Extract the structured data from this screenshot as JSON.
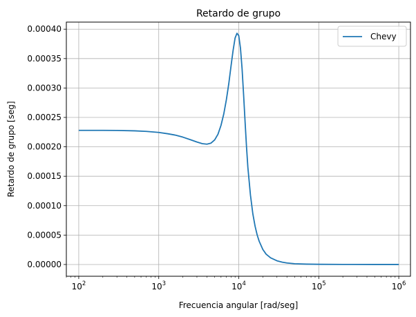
{
  "chart_data": {
    "type": "line",
    "title": "Retardo de grupo",
    "xlabel": "Frecuencia angular [rad/seg]",
    "ylabel": "Retardo de grupo [seg]",
    "x_scale": "log",
    "xlim": [
      70,
      1400000
    ],
    "ylim": [
      -2e-05,
      0.000412
    ],
    "x_ticks": [
      {
        "value": 100,
        "label_base": "10",
        "label_exp": "2"
      },
      {
        "value": 1000,
        "label_base": "10",
        "label_exp": "3"
      },
      {
        "value": 10000,
        "label_base": "10",
        "label_exp": "4"
      },
      {
        "value": 100000,
        "label_base": "10",
        "label_exp": "5"
      },
      {
        "value": 1000000,
        "label_base": "10",
        "label_exp": "6"
      }
    ],
    "y_ticks": [
      {
        "value": 0.0,
        "label": "0.00000"
      },
      {
        "value": 5e-05,
        "label": "0.00005"
      },
      {
        "value": 0.0001,
        "label": "0.00010"
      },
      {
        "value": 0.00015,
        "label": "0.00015"
      },
      {
        "value": 0.0002,
        "label": "0.00020"
      },
      {
        "value": 0.00025,
        "label": "0.00025"
      },
      {
        "value": 0.0003,
        "label": "0.00030"
      },
      {
        "value": 0.00035,
        "label": "0.00035"
      },
      {
        "value": 0.0004,
        "label": "0.00040"
      }
    ],
    "grid": true,
    "legend_position": "top-right",
    "series": [
      {
        "name": "Chevy",
        "color": "#1f77b4",
        "x": [
          100,
          200,
          300,
          500,
          700,
          1000,
          1300,
          1600,
          2000,
          2500,
          3000,
          3500,
          4000,
          4500,
          5000,
          5500,
          6000,
          6500,
          7000,
          7500,
          8000,
          8500,
          9000,
          9500,
          10000,
          10500,
          11000,
          11500,
          12000,
          12500,
          13000,
          14000,
          15000,
          16000,
          17000,
          18000,
          20000,
          22000,
          25000,
          30000,
          35000,
          40000,
          50000,
          70000,
          100000,
          200000,
          500000,
          1000000
        ],
        "y": [
          0.000228,
          0.000228,
          0.0002278,
          0.0002272,
          0.0002262,
          0.0002245,
          0.0002222,
          0.00022,
          0.0002165,
          0.000212,
          0.0002082,
          0.0002054,
          0.0002045,
          0.0002063,
          0.0002118,
          0.0002215,
          0.0002365,
          0.000256,
          0.00028,
          0.000307,
          0.000337,
          0.000364,
          0.000385,
          0.000393,
          0.000389,
          0.000368,
          0.000333,
          0.000288,
          0.000242,
          0.0002,
          0.000165,
          0.000118,
          8.6e-05,
          6.5e-05,
          5e-05,
          3.95e-05,
          2.55e-05,
          1.75e-05,
          1.13e-05,
          6.3e-06,
          3.9e-06,
          2.6e-06,
          1.3e-06,
          6e-07,
          3e-07,
          1e-07,
          0.0,
          0.0
        ]
      }
    ]
  }
}
